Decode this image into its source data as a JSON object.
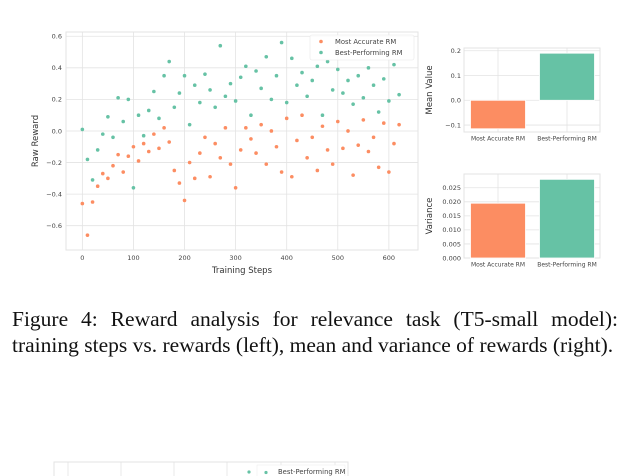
{
  "chart_data": [
    {
      "type": "scatter",
      "xlabel": "Training Steps",
      "ylabel": "Raw Reward",
      "xlim": [
        -32,
        657
      ],
      "ylim": [
        -0.754,
        0.627
      ],
      "xticks": [
        0,
        100,
        200,
        300,
        400,
        500,
        600
      ],
      "yticks": [
        -0.6,
        -0.4,
        -0.2,
        0.0,
        0.2,
        0.4,
        0.6
      ],
      "ytick_labels": [
        "−0.6",
        "−0.4",
        "−0.2",
        "0.0",
        "0.2",
        "0.4",
        "0.6"
      ],
      "grid": true,
      "legend": "top-right",
      "x": [
        0,
        10,
        20,
        30,
        40,
        50,
        60,
        70,
        80,
        90,
        100,
        110,
        120,
        130,
        140,
        150,
        160,
        170,
        180,
        190,
        200,
        210,
        220,
        230,
        240,
        250,
        260,
        270,
        280,
        290,
        300,
        310,
        320,
        330,
        340,
        350,
        360,
        370,
        380,
        390,
        400,
        410,
        420,
        430,
        440,
        450,
        460,
        470,
        480,
        490,
        500,
        510,
        520,
        530,
        540,
        550,
        560,
        570,
        580,
        590,
        600,
        610,
        620
      ],
      "series": [
        {
          "name": "Most Accurate RM",
          "color": "#fc8d62",
          "values": [
            -0.46,
            -0.66,
            -0.45,
            -0.35,
            -0.27,
            -0.3,
            -0.22,
            -0.15,
            -0.26,
            -0.16,
            -0.1,
            -0.19,
            -0.08,
            -0.13,
            -0.02,
            -0.11,
            0.02,
            -0.07,
            -0.25,
            -0.33,
            -0.44,
            -0.2,
            -0.3,
            -0.14,
            -0.04,
            -0.29,
            -0.08,
            -0.17,
            0.02,
            -0.21,
            -0.36,
            -0.12,
            0.02,
            -0.05,
            -0.14,
            0.04,
            -0.21,
            0.0,
            -0.1,
            -0.26,
            0.08,
            -0.29,
            -0.06,
            0.1,
            -0.17,
            -0.04,
            -0.25,
            0.03,
            -0.12,
            -0.21,
            0.06,
            -0.11,
            0.0,
            -0.28,
            -0.09,
            0.07,
            -0.13,
            -0.04,
            -0.23,
            0.05,
            -0.26,
            -0.08,
            0.04
          ]
        },
        {
          "name": "Best-Performing RM",
          "color": "#66c2a5",
          "values": [
            0.01,
            -0.18,
            -0.31,
            -0.12,
            -0.02,
            0.09,
            -0.04,
            0.21,
            0.06,
            0.2,
            -0.36,
            0.1,
            -0.03,
            0.13,
            0.25,
            0.08,
            0.35,
            0.44,
            0.15,
            0.24,
            0.35,
            0.04,
            0.29,
            0.18,
            0.36,
            0.26,
            0.15,
            0.54,
            0.22,
            0.3,
            0.19,
            0.34,
            0.41,
            0.1,
            0.38,
            0.27,
            0.47,
            0.2,
            0.35,
            0.56,
            0.18,
            0.46,
            0.29,
            0.37,
            0.22,
            0.32,
            0.41,
            0.1,
            0.44,
            0.26,
            0.39,
            0.24,
            0.32,
            0.17,
            0.35,
            0.21,
            0.4,
            0.29,
            0.12,
            0.33,
            0.19,
            0.42,
            0.23
          ]
        }
      ]
    },
    {
      "type": "bar",
      "ylabel": "Mean Value",
      "categories": [
        "Most Accurate RM",
        "Best-Performing RM"
      ],
      "values": [
        -0.115,
        0.19
      ],
      "colors": [
        "#fc8d62",
        "#66c2a5"
      ],
      "ylim": [
        -0.128,
        0.211
      ],
      "yticks": [
        -0.1,
        0.0,
        0.1,
        0.2
      ],
      "ytick_labels": [
        "−0.1",
        "0.0",
        "0.1",
        "0.2"
      ],
      "grid": true
    },
    {
      "type": "bar",
      "ylabel": "Variance",
      "categories": [
        "Most Accurate RM",
        "Best-Performing RM"
      ],
      "values": [
        0.0195,
        0.028
      ],
      "colors": [
        "#fc8d62",
        "#66c2a5"
      ],
      "ylim": [
        0,
        0.0299
      ],
      "yticks": [
        0,
        0.005,
        0.01,
        0.015,
        0.02,
        0.025
      ],
      "ytick_labels": [
        "0.000",
        "0.005",
        "0.010",
        "0.015",
        "0.020",
        "0.025"
      ],
      "grid": true
    }
  ],
  "caption": "Figure 4:  Reward analysis for relevance task (T5-small model): training steps vs. rewards (left), mean and variance of rewards (right).",
  "next_figure": {
    "legend_label": "Best-Performing RM",
    "color": "#66c2a5"
  }
}
